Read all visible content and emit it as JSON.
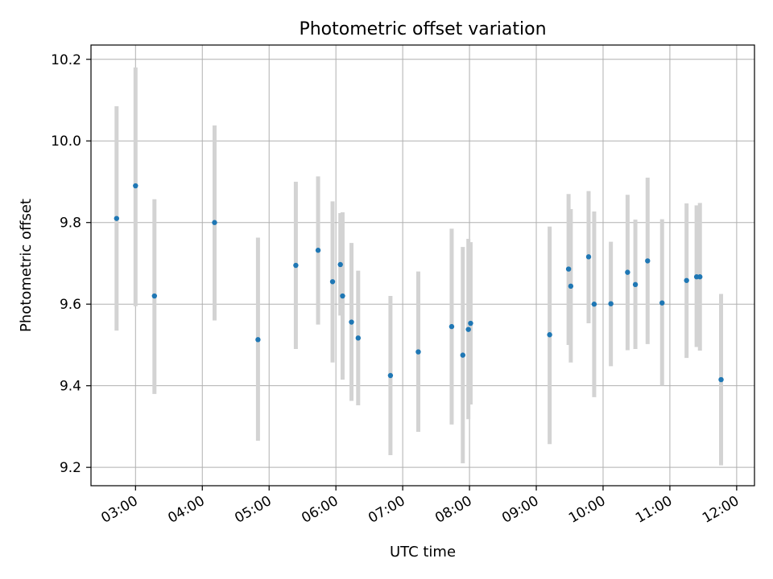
{
  "chart_data": {
    "type": "scatter",
    "title": "Photometric offset variation",
    "xlabel": "UTC time",
    "ylabel": "Photometric offset",
    "x_tick_labels": [
      "03:00",
      "04:00",
      "05:00",
      "06:00",
      "07:00",
      "08:00",
      "09:00",
      "10:00",
      "11:00",
      "12:00"
    ],
    "y_tick_labels": [
      "9.2",
      "9.4",
      "9.6",
      "9.8",
      "10.0",
      "10.2"
    ],
    "x_ticks": [
      "03:00",
      "04:00",
      "05:00",
      "06:00",
      "07:00",
      "08:00",
      "09:00",
      "10:00",
      "11:00",
      "12:00"
    ],
    "y_ticks": [
      9.2,
      9.4,
      9.6,
      9.8,
      10.0,
      10.2
    ],
    "xlim": [
      "02:20",
      "12:16"
    ],
    "ylim": [
      9.155,
      10.235
    ],
    "grid": true,
    "point_color": "#1f77b4",
    "errorbar_color": "#d3d3d3",
    "points": [
      {
        "x": "02:43",
        "y": 9.81,
        "ylow": 9.535,
        "yhigh": 10.085
      },
      {
        "x": "03:00",
        "y": 9.89,
        "ylow": 9.595,
        "yhigh": 10.18
      },
      {
        "x": "03:17",
        "y": 9.62,
        "ylow": 9.38,
        "yhigh": 9.857
      },
      {
        "x": "04:11",
        "y": 9.8,
        "ylow": 9.56,
        "yhigh": 10.038
      },
      {
        "x": "04:50",
        "y": 9.513,
        "ylow": 9.265,
        "yhigh": 9.763
      },
      {
        "x": "05:24",
        "y": 9.695,
        "ylow": 9.49,
        "yhigh": 9.9
      },
      {
        "x": "05:44",
        "y": 9.732,
        "ylow": 9.55,
        "yhigh": 9.913
      },
      {
        "x": "05:57",
        "y": 9.655,
        "ylow": 9.457,
        "yhigh": 9.852
      },
      {
        "x": "06:04",
        "y": 9.697,
        "ylow": 9.572,
        "yhigh": 9.823
      },
      {
        "x": "06:06",
        "y": 9.62,
        "ylow": 9.415,
        "yhigh": 9.825
      },
      {
        "x": "06:14",
        "y": 9.556,
        "ylow": 9.363,
        "yhigh": 9.75
      },
      {
        "x": "06:20",
        "y": 9.517,
        "ylow": 9.352,
        "yhigh": 9.682
      },
      {
        "x": "06:49",
        "y": 9.425,
        "ylow": 9.23,
        "yhigh": 9.62
      },
      {
        "x": "07:14",
        "y": 9.483,
        "ylow": 9.287,
        "yhigh": 9.68
      },
      {
        "x": "07:44",
        "y": 9.545,
        "ylow": 9.305,
        "yhigh": 9.785
      },
      {
        "x": "07:54",
        "y": 9.475,
        "ylow": 9.21,
        "yhigh": 9.74
      },
      {
        "x": "07:59",
        "y": 9.538,
        "ylow": 9.318,
        "yhigh": 9.76
      },
      {
        "x": "08:01",
        "y": 9.553,
        "ylow": 9.354,
        "yhigh": 9.752
      },
      {
        "x": "09:12",
        "y": 9.525,
        "ylow": 9.257,
        "yhigh": 9.79
      },
      {
        "x": "09:29",
        "y": 9.686,
        "ylow": 9.5,
        "yhigh": 9.87
      },
      {
        "x": "09:31",
        "y": 9.644,
        "ylow": 9.457,
        "yhigh": 9.833
      },
      {
        "x": "09:47",
        "y": 9.716,
        "ylow": 9.553,
        "yhigh": 9.877
      },
      {
        "x": "09:52",
        "y": 9.6,
        "ylow": 9.372,
        "yhigh": 9.827
      },
      {
        "x": "10:07",
        "y": 9.601,
        "ylow": 9.448,
        "yhigh": 9.753
      },
      {
        "x": "10:22",
        "y": 9.678,
        "ylow": 9.487,
        "yhigh": 9.868
      },
      {
        "x": "10:29",
        "y": 9.648,
        "ylow": 9.49,
        "yhigh": 9.807
      },
      {
        "x": "10:40",
        "y": 9.706,
        "ylow": 9.502,
        "yhigh": 9.91
      },
      {
        "x": "10:53",
        "y": 9.603,
        "ylow": 9.4,
        "yhigh": 9.808
      },
      {
        "x": "11:15",
        "y": 9.658,
        "ylow": 9.468,
        "yhigh": 9.847
      },
      {
        "x": "11:24",
        "y": 9.667,
        "ylow": 9.495,
        "yhigh": 9.842
      },
      {
        "x": "11:27",
        "y": 9.667,
        "ylow": 9.486,
        "yhigh": 9.848
      },
      {
        "x": "11:46",
        "y": 9.415,
        "ylow": 9.205,
        "yhigh": 9.625
      }
    ]
  }
}
